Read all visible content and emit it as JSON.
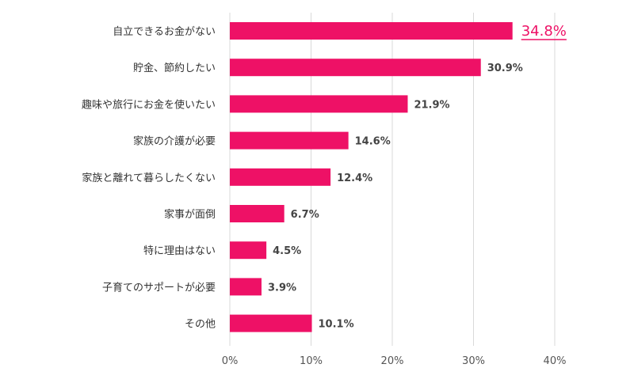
{
  "chart_data": {
    "type": "bar",
    "orientation": "horizontal",
    "title": "",
    "xlabel": "",
    "ylabel": "",
    "categories": [
      "自立できるお金がない",
      "貯金、節約したい",
      "趣味や旅行にお金を使いたい",
      "家族の介護が必要",
      "家族と離れて暮らしたくない",
      "家事が面倒",
      "特に理由はない",
      "子育てのサポートが必要",
      "その他"
    ],
    "values": [
      34.8,
      30.9,
      21.9,
      14.6,
      12.4,
      6.7,
      4.5,
      3.9,
      10.1
    ],
    "value_labels": [
      "34.8%",
      "30.9%",
      "21.9%",
      "14.6%",
      "12.4%",
      "6.7%",
      "4.5%",
      "3.9%",
      "10.1%"
    ],
    "highlight_index": 0,
    "xlim": [
      0,
      40
    ],
    "xticks": [
      0,
      10,
      20,
      30,
      40
    ],
    "xtick_labels": [
      "0%",
      "10%",
      "20%",
      "30%",
      "40%"
    ],
    "grid": true,
    "colors": {
      "bar": "#ee1166",
      "highlight_text": "#ee1166",
      "grid": "#d9d9d9"
    }
  }
}
